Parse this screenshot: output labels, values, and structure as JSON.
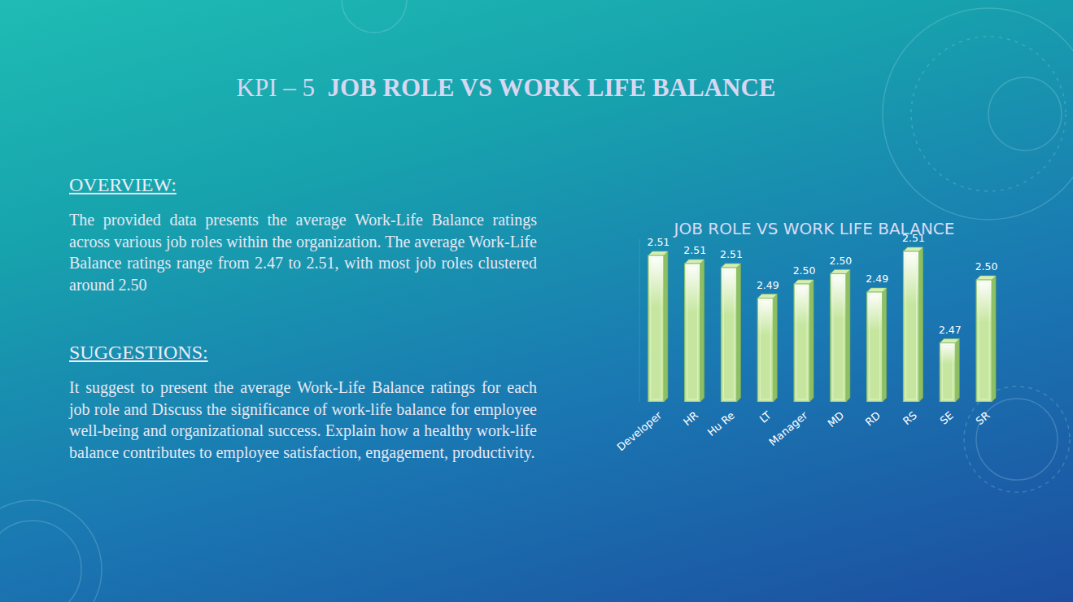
{
  "slide": {
    "title_prefix": "KPI – 5",
    "title": "JOB ROLE VS WORK LIFE BALANCE",
    "overview_heading": "OVERVIEW:",
    "overview_text": "The provided data presents the average Work-Life Balance ratings across various job roles within the organization. The average Work-Life Balance ratings range from 2.47 to 2.51, with most job roles clustered around 2.50",
    "suggestions_heading": "SUGGESTIONS:",
    "suggestions_text": "It suggest to present the average Work-Life Balance ratings for each job role and Discuss the significance of work-life balance for employee well-being and organizational success. Explain how a healthy work-life balance contributes to employee satisfaction, engagement, productivity."
  },
  "chart_data": {
    "type": "bar",
    "title": "JOB ROLE VS WORK LIFE BALANCE",
    "categories": [
      "Developer",
      "HR",
      "Hu Re",
      "LT",
      "Manager",
      "MD",
      "RD",
      "RS",
      "SE",
      "SR"
    ],
    "values": [
      2.512,
      2.508,
      2.506,
      2.491,
      2.498,
      2.503,
      2.494,
      2.514,
      2.469,
      2.5
    ],
    "value_labels": [
      "2.51",
      "2.51",
      "2.51",
      "2.49",
      "2.50",
      "2.50",
      "2.49",
      "2.51",
      "2.47",
      "2.50"
    ],
    "color": "#c6e6a0",
    "ylim": [
      2.44,
      2.52
    ],
    "data_labels": true,
    "tick_labels": "x",
    "grid": false
  }
}
